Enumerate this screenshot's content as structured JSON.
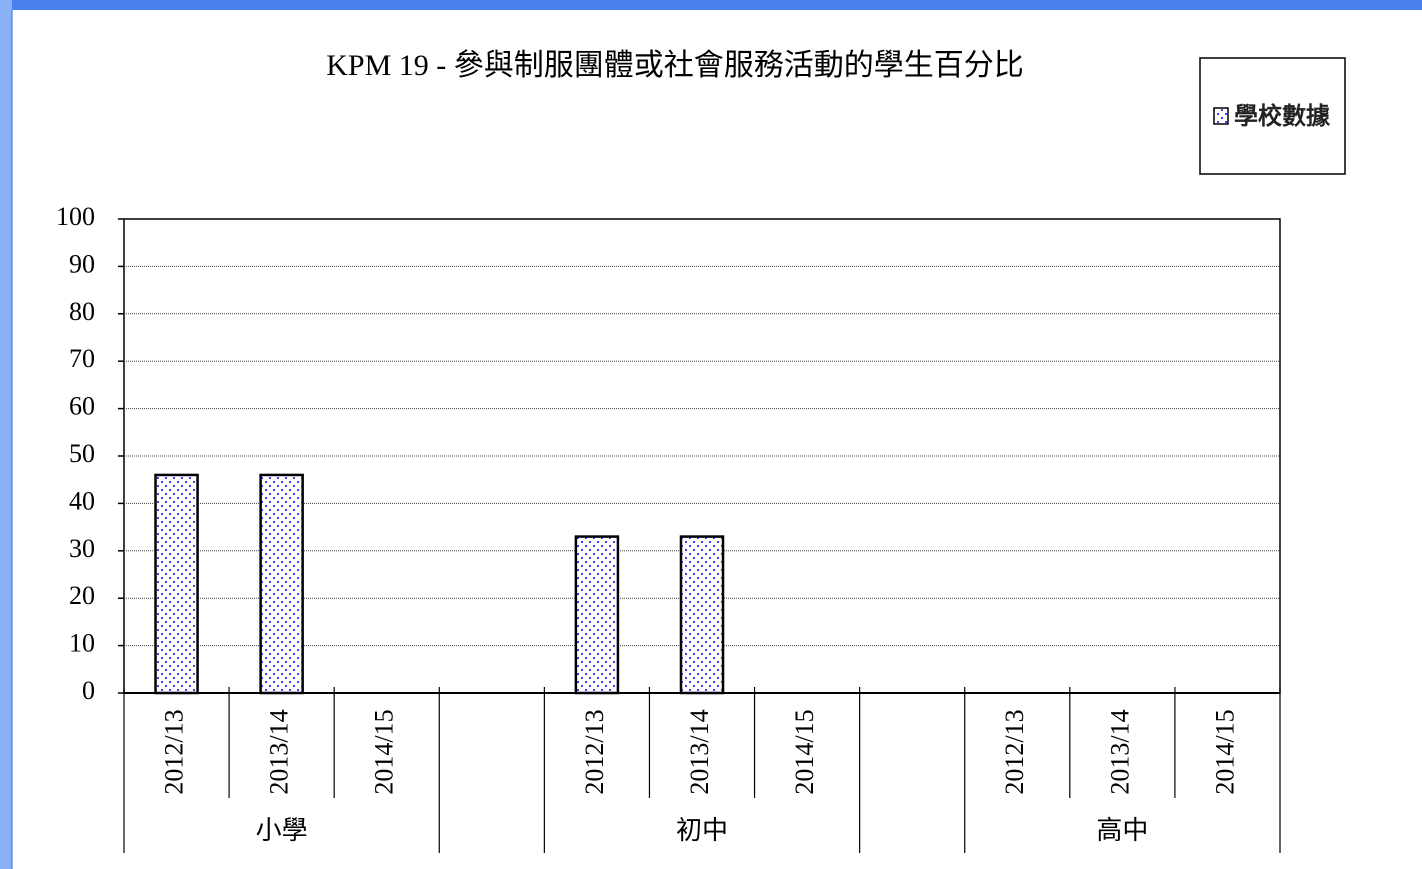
{
  "chart_data": {
    "type": "bar",
    "title": "KPM 19 - 參與制服團體或社會服務活動的學生百分比",
    "categories": [
      "2012/13",
      "2013/14",
      "2014/15",
      null,
      "2012/13",
      "2013/14",
      "2014/15",
      null,
      "2012/13",
      "2013/14",
      "2014/15"
    ],
    "groups": [
      "小學",
      "初中",
      "高中"
    ],
    "series": [
      {
        "name": "學校數據",
        "color": "#0000ff",
        "values": [
          46,
          46,
          null,
          null,
          33,
          33,
          null,
          null,
          null,
          null,
          null
        ]
      }
    ],
    "ylim": [
      0,
      100
    ],
    "yticks": [
      0,
      10,
      20,
      30,
      40,
      50,
      60,
      70,
      80,
      90,
      100
    ],
    "grid": true,
    "legend": "top-right"
  }
}
